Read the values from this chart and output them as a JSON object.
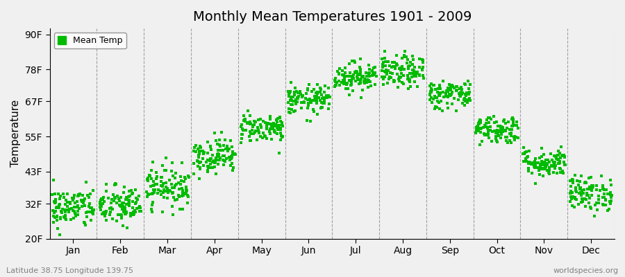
{
  "title": "Monthly Mean Temperatures 1901 - 2009",
  "ylabel": "Temperature",
  "xlabel_months": [
    "Jan",
    "Feb",
    "Mar",
    "Apr",
    "May",
    "Jun",
    "Jul",
    "Aug",
    "Sep",
    "Oct",
    "Nov",
    "Dec"
  ],
  "ytick_labels": [
    "20F",
    "32F",
    "43F",
    "55F",
    "67F",
    "78F",
    "90F"
  ],
  "ytick_values": [
    20,
    32,
    43,
    55,
    67,
    78,
    90
  ],
  "ylim": [
    20,
    92
  ],
  "dot_color": "#00bb00",
  "background_color": "#f0f0f0",
  "plot_bg_color": "#f0f0f0",
  "legend_label": "Mean Temp",
  "footer_left": "Latitude 38.75 Longitude 139.75",
  "footer_right": "worldspecies.org",
  "num_years": 109,
  "monthly_mean_temps_F": [
    30.5,
    31.2,
    37.8,
    48.5,
    58.0,
    67.5,
    75.5,
    77.0,
    69.5,
    57.5,
    46.0,
    35.5
  ],
  "monthly_std_F": [
    3.5,
    3.5,
    3.5,
    3.0,
    2.5,
    2.5,
    2.5,
    2.8,
    2.5,
    2.5,
    2.5,
    3.0
  ]
}
